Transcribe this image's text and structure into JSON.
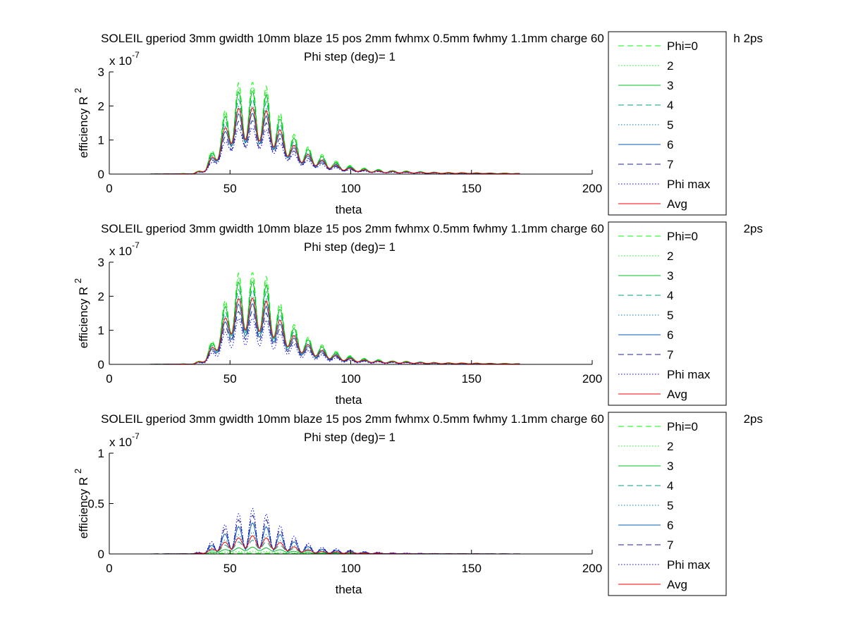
{
  "chart_data": [
    {
      "type": "line",
      "title": "SOLEIL gperiod 3mm gwidth 10mm blaze 15 pos 2mm fwhmx 0.5mm fwhmy 1.1mm charge 60",
      "title_tail": "h 2ps",
      "subtitle": "Phi step (deg)= 1",
      "xlabel": "theta",
      "ylabel_base": "efficiency R",
      "ylabel_sup": "2",
      "exponent_base": "x 10",
      "exponent_power": "-7",
      "xlim": [
        0,
        200
      ],
      "ylim": [
        0,
        3
      ],
      "xticks": [
        0,
        50,
        100,
        150,
        200
      ],
      "xtick_labels": [
        "0",
        "50",
        "100",
        "150",
        "200"
      ],
      "yticks": [
        0,
        1,
        2,
        3
      ],
      "ytick_labels": [
        "0",
        "1",
        "2",
        "3"
      ],
      "grid": false,
      "legend_position": "right",
      "legend": [
        "Phi=0",
        "2",
        "3",
        "4",
        "5",
        "6",
        "7",
        "Phi max",
        "Avg"
      ],
      "envelope": {
        "theta": [
          15,
          35,
          40,
          45,
          50,
          55,
          60,
          65,
          70,
          75,
          80,
          85,
          90,
          95,
          100,
          105,
          110,
          115,
          120,
          125,
          130,
          135,
          140,
          145,
          150,
          155,
          160,
          165,
          170
        ],
        "peak_scale": [
          0,
          0.02,
          0.25,
          1.2,
          2.4,
          2.8,
          2.7,
          2.6,
          1.9,
          1.3,
          0.9,
          0.7,
          0.5,
          0.35,
          0.25,
          0.18,
          0.15,
          0.12,
          0.1,
          0.09,
          0.07,
          0.06,
          0.05,
          0.05,
          0.04,
          0.04,
          0.03,
          0.03,
          0.02
        ]
      },
      "series": [
        {
          "name": "Phi=0",
          "color": "#00ff00",
          "dash": "8,5",
          "factor": 1.0,
          "mod": 0.65
        },
        {
          "name": "2",
          "color": "#00ff00",
          "dash": "1.5,2.5",
          "factor": 0.95,
          "mod": 0.65
        },
        {
          "name": "3",
          "color": "#00bf20",
          "dash": "",
          "factor": 0.9,
          "mod": 0.6
        },
        {
          "name": "4",
          "color": "#009f80",
          "dash": "8,5",
          "factor": 0.82,
          "mod": 0.6
        },
        {
          "name": "5",
          "color": "#0080bf",
          "dash": "1.5,2.5",
          "factor": 0.74,
          "mod": 0.55
        },
        {
          "name": "6",
          "color": "#005fbf",
          "dash": "",
          "factor": 0.66,
          "mod": 0.5
        },
        {
          "name": "7",
          "color": "#20208f",
          "dash": "8,5",
          "factor": 0.58,
          "mod": 0.5
        },
        {
          "name": "Phi max",
          "color": "#0000ff",
          "dash": "1.5,2.5",
          "factor": 0.5,
          "mod": 0.45
        },
        {
          "name": "Avg",
          "color": "#ff0000",
          "dash": "",
          "factor": 0.72,
          "mod": 0.5
        }
      ]
    },
    {
      "type": "line",
      "title": "SOLEIL gperiod 3mm gwidth 10mm blaze 15 pos 2mm fwhmx 0.5mm fwhmy 1.1mm charge 60",
      "title_tail": "2ps",
      "subtitle": "Phi step (deg)= 1",
      "xlabel": "theta",
      "ylabel_base": "efficiency R",
      "ylabel_sup": "2",
      "exponent_base": "x 10",
      "exponent_power": "-7",
      "xlim": [
        0,
        200
      ],
      "ylim": [
        0,
        3
      ],
      "xticks": [
        0,
        50,
        100,
        150,
        200
      ],
      "xtick_labels": [
        "0",
        "50",
        "100",
        "150",
        "200"
      ],
      "yticks": [
        0,
        1,
        2,
        3
      ],
      "ytick_labels": [
        "0",
        "1",
        "2",
        "3"
      ],
      "grid": false,
      "legend_position": "right",
      "legend": [
        "Phi=0",
        "2",
        "3",
        "4",
        "5",
        "6",
        "7",
        "Phi max",
        "Avg"
      ],
      "envelope": {
        "theta": [
          15,
          35,
          40,
          45,
          50,
          55,
          60,
          65,
          70,
          75,
          80,
          85,
          90,
          95,
          100,
          105,
          110,
          115,
          120,
          125,
          130,
          135,
          140,
          145,
          150,
          155,
          160,
          165,
          170
        ],
        "peak_scale": [
          0,
          0.02,
          0.25,
          1.2,
          2.4,
          2.8,
          2.7,
          2.6,
          1.9,
          1.3,
          0.9,
          0.7,
          0.5,
          0.35,
          0.25,
          0.18,
          0.15,
          0.12,
          0.1,
          0.09,
          0.07,
          0.06,
          0.05,
          0.05,
          0.04,
          0.04,
          0.03,
          0.03,
          0.02
        ]
      },
      "series": [
        {
          "name": "Phi=0",
          "color": "#00ff00",
          "dash": "8,5",
          "factor": 1.0,
          "mod": 0.65
        },
        {
          "name": "2",
          "color": "#00ff00",
          "dash": "1.5,2.5",
          "factor": 0.95,
          "mod": 0.65
        },
        {
          "name": "3",
          "color": "#00bf20",
          "dash": "",
          "factor": 0.9,
          "mod": 0.6
        },
        {
          "name": "4",
          "color": "#009f80",
          "dash": "8,5",
          "factor": 0.82,
          "mod": 0.6
        },
        {
          "name": "5",
          "color": "#0080bf",
          "dash": "1.5,2.5",
          "factor": 0.74,
          "mod": 0.55
        },
        {
          "name": "6",
          "color": "#005fbf",
          "dash": "",
          "factor": 0.66,
          "mod": 0.55
        },
        {
          "name": "7",
          "color": "#20208f",
          "dash": "8,5",
          "factor": 0.58,
          "mod": 0.55
        },
        {
          "name": "Phi max",
          "color": "#0000ff",
          "dash": "1.5,2.5",
          "factor": 0.5,
          "mod": 0.6
        },
        {
          "name": "Avg",
          "color": "#ff0000",
          "dash": "",
          "factor": 0.72,
          "mod": 0.5
        }
      ]
    },
    {
      "type": "line",
      "title": "SOLEIL gperiod 3mm gwidth 10mm blaze 15 pos 2mm fwhmx 0.5mm fwhmy 1.1mm charge 60",
      "title_tail": "2ps",
      "subtitle": "Phi step (deg)= 1",
      "xlabel": "theta",
      "ylabel_base": "efficiency R",
      "ylabel_sup": "2",
      "exponent_base": "x 10",
      "exponent_power": "-7",
      "xlim": [
        0,
        200
      ],
      "ylim": [
        0,
        1
      ],
      "xticks": [
        0,
        50,
        100,
        150,
        200
      ],
      "xtick_labels": [
        "0",
        "50",
        "100",
        "150",
        "200"
      ],
      "yticks": [
        0,
        0.5,
        1
      ],
      "ytick_labels": [
        "0",
        "0.5",
        "1"
      ],
      "grid": false,
      "legend_position": "right",
      "legend": [
        "Phi=0",
        "2",
        "3",
        "4",
        "5",
        "6",
        "7",
        "Phi max",
        "Avg"
      ],
      "envelope": {
        "theta": [
          15,
          35,
          40,
          45,
          50,
          55,
          60,
          65,
          70,
          75,
          80,
          85,
          90,
          95,
          100,
          105,
          110,
          115,
          120,
          125,
          130,
          135,
          140,
          145,
          150,
          155,
          160,
          165,
          170
        ],
        "peak_scale": [
          0,
          0.005,
          0.05,
          0.22,
          0.35,
          0.42,
          0.46,
          0.4,
          0.3,
          0.2,
          0.13,
          0.08,
          0.06,
          0.05,
          0.04,
          0.025,
          0.02,
          0.012,
          0.01,
          0.008,
          0.006,
          0.005,
          0.004,
          0.004,
          0.003,
          0.003,
          0.002,
          0.002,
          0.001
        ]
      },
      "series": [
        {
          "name": "Phi=0",
          "color": "#00ff00",
          "dash": "8,5",
          "factor": 0.02,
          "mod": 0.3
        },
        {
          "name": "2",
          "color": "#00ff00",
          "dash": "1.5,2.5",
          "factor": 0.06,
          "mod": 0.4
        },
        {
          "name": "3",
          "color": "#00bf20",
          "dash": "",
          "factor": 0.15,
          "mod": 0.5
        },
        {
          "name": "4",
          "color": "#009f80",
          "dash": "8,5",
          "factor": 0.3,
          "mod": 0.6
        },
        {
          "name": "5",
          "color": "#0080bf",
          "dash": "1.5,2.5",
          "factor": 0.48,
          "mod": 0.7
        },
        {
          "name": "6",
          "color": "#005fbf",
          "dash": "",
          "factor": 0.68,
          "mod": 0.8
        },
        {
          "name": "7",
          "color": "#20208f",
          "dash": "8,5",
          "factor": 0.85,
          "mod": 0.85
        },
        {
          "name": "Phi max",
          "color": "#0000ff",
          "dash": "1.5,2.5",
          "factor": 1.0,
          "mod": 0.9
        },
        {
          "name": "Avg",
          "color": "#ff0000",
          "dash": "",
          "factor": 0.4,
          "mod": 0.65
        }
      ]
    }
  ]
}
